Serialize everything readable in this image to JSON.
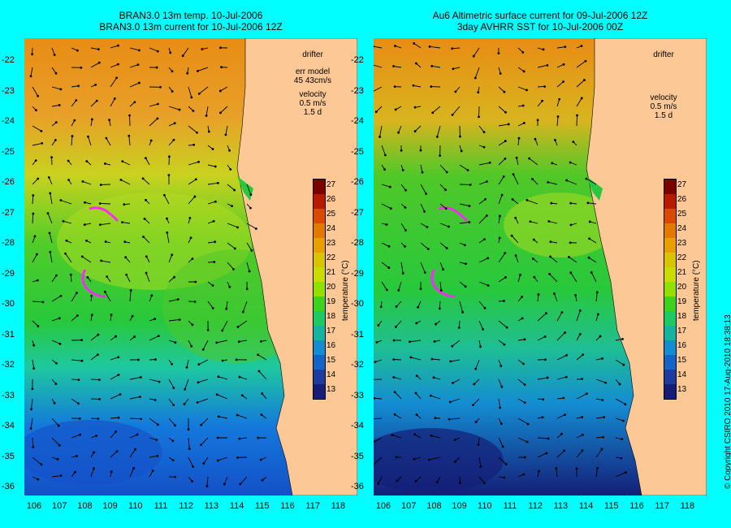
{
  "left_panel": {
    "title_line1": "BRAN3.0 13m temp. 10-Jul-2006",
    "title_line2": "BRAN3.0 13m current for 10-Jul-2006 12Z",
    "drifter_label": "drifter",
    "err_label": "err model",
    "err_value": "45 43cm/s",
    "velocity_label": "velocity",
    "velocity_scale": "0.5 m/s",
    "velocity_time": "1.5 d"
  },
  "right_panel": {
    "title_line1": "Au6 Altimetric surface current for 09-Jul-2006 12Z",
    "title_line2": "3day AVHRR SST for 10-Jul-2006 00Z",
    "drifter_label": "drifter",
    "velocity_label": "velocity",
    "velocity_scale": "0.5 m/s",
    "velocity_time": "1.5 d"
  },
  "axes": {
    "latitudes": [
      "-22",
      "-23",
      "-24",
      "-25",
      "-26",
      "-27",
      "-28",
      "-29",
      "-30",
      "-31",
      "-32",
      "-33",
      "-34",
      "-35",
      "-36"
    ],
    "longitudes": [
      "106",
      "107",
      "108",
      "109",
      "110",
      "111",
      "112",
      "113",
      "114",
      "115",
      "116",
      "117",
      "118"
    ]
  },
  "colorbar": {
    "label": "temperature (°C)",
    "ticks": [
      "27",
      "26",
      "25",
      "24",
      "23",
      "22",
      "21",
      "20",
      "19",
      "18",
      "17",
      "16",
      "15",
      "14",
      "13"
    ],
    "colors": [
      "#7a0000",
      "#b81a00",
      "#d84a00",
      "#e07a00",
      "#e8a000",
      "#d8c400",
      "#c8dc00",
      "#90e000",
      "#3cd21e",
      "#1ec864",
      "#14b4a0",
      "#148cd2",
      "#1464c8",
      "#1e3ca0",
      "#141e78"
    ]
  },
  "map_colors": {
    "land": "#fcc896",
    "warm": "#e88c14",
    "mid": "#b4dc1e",
    "cool": "#28c83c",
    "cold": "#1478dc",
    "track": "#ff28ff",
    "arrow": "#000000",
    "isobath": "#64dcdc"
  },
  "copyright": "© Copyright CSIRO 2010   17-Aug-2010 18:38:13"
}
